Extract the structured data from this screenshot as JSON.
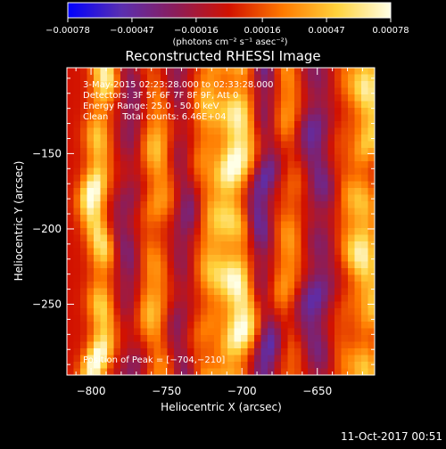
{
  "chart_data": {
    "type": "heatmap",
    "title": "Reconstructed RHESSI Image",
    "xlabel": "Heliocentric X (arcsec)",
    "ylabel": "Heliocentric Y (arcsec)",
    "xlim": [
      -816,
      -612
    ],
    "ylim": [
      -297,
      -93
    ],
    "x_ticks": [
      -800,
      -750,
      -700,
      -650
    ],
    "x_tick_labels": [
      "−800",
      "−750",
      "−700",
      "−650"
    ],
    "y_ticks": [
      -150,
      -200,
      -250
    ],
    "y_tick_labels": [
      "−150",
      "−200",
      "−250"
    ],
    "colorbar": {
      "colormap": "hot-on-blue",
      "range": [
        -0.00078,
        0.00078
      ],
      "ticks": [
        -0.00078,
        -0.00047,
        -0.00016,
        0.00016,
        0.00047,
        0.00078
      ],
      "tick_labels": [
        "−0.00078",
        "−0.00047",
        "−0.00016",
        "0.00016",
        "0.00047",
        "0.00078"
      ],
      "units_label": "(photons cm⁻² s⁻¹ asec⁻²)",
      "colors": [
        "#0000ff",
        "#5a2fb0",
        "#8b1d5a",
        "#d21200",
        "#ff7a00",
        "#ffd23c",
        "#ffffe6"
      ]
    },
    "peak_position": [
      -704,
      -210
    ],
    "bands_description_values": [
      {
        "x": -795,
        "amp": 0.00075
      },
      {
        "x": -774,
        "amp": -0.00035
      },
      {
        "x": -758,
        "amp": 0.00045
      },
      {
        "x": -740,
        "amp": -0.00035
      },
      {
        "x": -722,
        "amp": 0.0004
      },
      {
        "x": -704,
        "amp": 0.00078
      },
      {
        "x": -686,
        "amp": -0.0005
      },
      {
        "x": -668,
        "amp": 0.00035
      },
      {
        "x": -650,
        "amp": -0.00045
      },
      {
        "x": -632,
        "amp": 0.0002
      },
      {
        "x": -618,
        "amp": 0.0006
      }
    ]
  },
  "annotations": {
    "time_range": "3-May-2015 02:23:28.000 to 02:33:28.000",
    "detectors": "Detectors: 3F 5F 6F 7F 8F 9F, Att 0",
    "energy_range": "Energy Range: 25.0 - 50.0 keV",
    "clean_counts": "Clean     Total counts: 6.46E+04",
    "peak_label": "Position of Peak = [−704,−210]"
  },
  "footer": {
    "timestamp": "11-Oct-2017 00:51"
  }
}
